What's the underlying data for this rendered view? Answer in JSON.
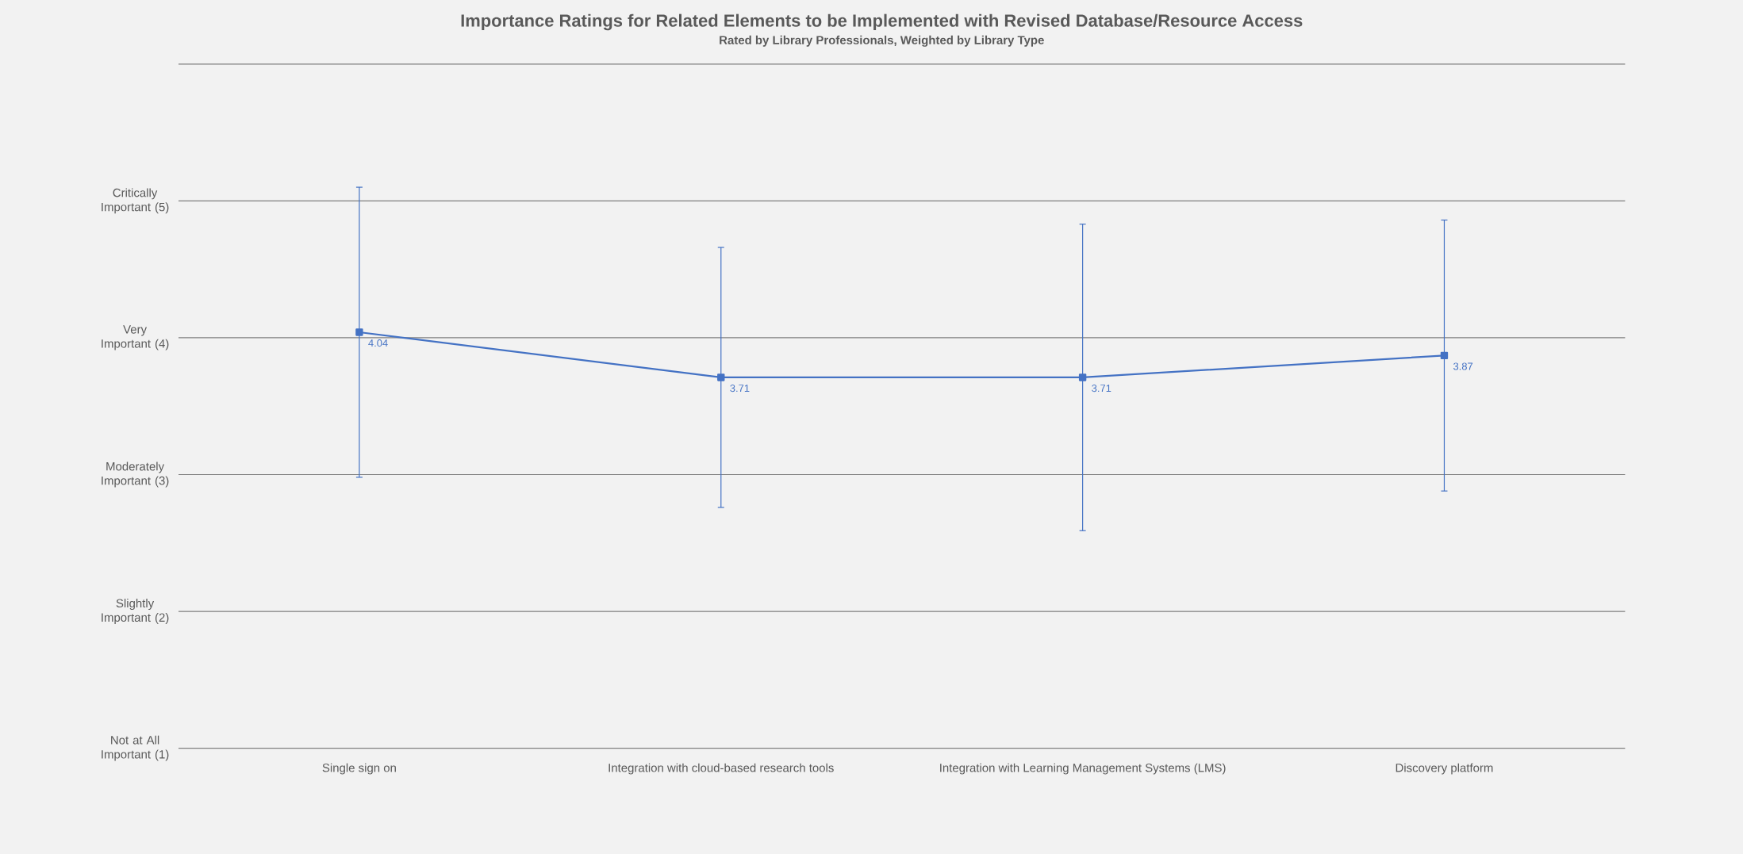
{
  "chart_data": {
    "type": "line",
    "title": "Importance Ratings for Related Elements to be Implemented with Revised Database/Resource Access",
    "subtitle": "Rated by Library Professionals, Weighted by Library Type",
    "categories": [
      "Single sign on",
      "Integration with cloud-based research tools",
      "Integration with Learning Management Systems (LMS)",
      "Discovery platform"
    ],
    "values": [
      4.04,
      3.71,
      3.71,
      3.87
    ],
    "errors": [
      1.06,
      0.95,
      1.12,
      0.99
    ],
    "color": "#4472c4",
    "ylim": [
      1,
      6
    ],
    "yticks": [
      {
        "value": 1,
        "label": "Not at All Important (1)"
      },
      {
        "value": 2,
        "label": "Slightly Important (2)"
      },
      {
        "value": 3,
        "label": "Moderately Important (3)"
      },
      {
        "value": 4,
        "label": "Very Important (4)"
      },
      {
        "value": 5,
        "label": "Critically Important (5)"
      },
      {
        "value": 6,
        "label": null
      }
    ],
    "grid": "y",
    "marker": "square",
    "line_style": "solid",
    "data_labels": true
  }
}
